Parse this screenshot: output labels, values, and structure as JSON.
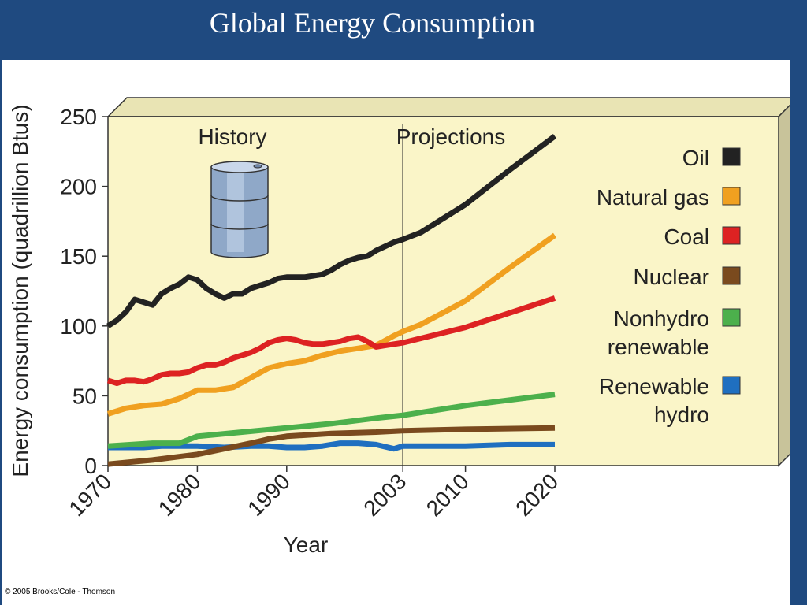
{
  "slide": {
    "title": "Global Energy Consumption"
  },
  "copyright": "© 2005 Brooks/Cole - Thomson",
  "chart_data": {
    "type": "line",
    "ylabel": "Energy consumption (quadrillion Btus)",
    "xlabel": "Year",
    "ylim": [
      0,
      250
    ],
    "yticks": [
      0,
      50,
      100,
      150,
      200,
      250
    ],
    "xticks": [
      1970,
      1980,
      1990,
      2003,
      2010,
      2020
    ],
    "xlim": [
      1970,
      2020
    ],
    "sections": {
      "history": "History",
      "projections": "Projections",
      "divider_year": 2003
    },
    "legend_placement": "right",
    "grid": false,
    "colors": {
      "panel": "#faf5c8",
      "panel_side": "#c8c39a",
      "panel_top": "#e9e4b4"
    },
    "series": [
      {
        "name": "Oil",
        "color": "#222222",
        "x": [
          1970,
          1971,
          1972,
          1973,
          1974,
          1975,
          1976,
          1977,
          1978,
          1979,
          1980,
          1981,
          1982,
          1983,
          1984,
          1985,
          1986,
          1987,
          1988,
          1989,
          1990,
          1991,
          1992,
          1993,
          1994,
          1995,
          1996,
          1997,
          1998,
          1999,
          2000,
          2001,
          2002,
          2003,
          2005,
          2010,
          2015,
          2020
        ],
        "y": [
          100,
          104,
          110,
          119,
          117,
          115,
          123,
          127,
          130,
          135,
          133,
          127,
          123,
          120,
          123,
          123,
          127,
          129,
          131,
          134,
          135,
          135,
          135,
          136,
          137,
          140,
          144,
          147,
          149,
          150,
          154,
          157,
          160,
          162,
          167,
          187,
          212,
          236
        ]
      },
      {
        "name": "Natural gas",
        "color": "#f0a020",
        "x": [
          1970,
          1972,
          1974,
          1976,
          1978,
          1980,
          1982,
          1984,
          1986,
          1988,
          1990,
          1992,
          1994,
          1996,
          1998,
          2000,
          2002,
          2003,
          2005,
          2010,
          2015,
          2020
        ],
        "y": [
          37,
          41,
          43,
          44,
          48,
          54,
          54,
          56,
          63,
          70,
          73,
          75,
          79,
          82,
          84,
          86,
          93,
          96,
          101,
          118,
          142,
          165
        ]
      },
      {
        "name": "Coal",
        "color": "#dd2222",
        "x": [
          1970,
          1971,
          1972,
          1973,
          1974,
          1975,
          1976,
          1977,
          1978,
          1979,
          1980,
          1981,
          1982,
          1983,
          1984,
          1985,
          1986,
          1987,
          1988,
          1989,
          1990,
          1991,
          1992,
          1993,
          1994,
          1995,
          1996,
          1997,
          1998,
          1999,
          2000,
          2001,
          2003,
          2010,
          2020
        ],
        "y": [
          61,
          59,
          61,
          61,
          60,
          62,
          65,
          66,
          66,
          67,
          70,
          72,
          72,
          74,
          77,
          79,
          81,
          84,
          88,
          90,
          91,
          90,
          88,
          87,
          87,
          88,
          89,
          91,
          92,
          89,
          85,
          86,
          88,
          99,
          120
        ]
      },
      {
        "name": "Nuclear",
        "color": "#7a4a1e",
        "x": [
          1970,
          1975,
          1980,
          1983,
          1986,
          1988,
          1990,
          1995,
          2000,
          2003,
          2010,
          2020
        ],
        "y": [
          1,
          4,
          8,
          12,
          16,
          19,
          21,
          23,
          24,
          25,
          26,
          27
        ]
      },
      {
        "name": "Nonhydro renewable",
        "color": "#4cb04c",
        "x": [
          1970,
          1975,
          1978,
          1980,
          1985,
          1990,
          1995,
          2000,
          2003,
          2010,
          2020
        ],
        "y": [
          14,
          16,
          16,
          21,
          24,
          27,
          30,
          34,
          36,
          43,
          51
        ]
      },
      {
        "name": "Renewable hydro",
        "color": "#1f6fc0",
        "x": [
          1970,
          1974,
          1976,
          1978,
          1980,
          1983,
          1986,
          1988,
          1990,
          1992,
          1994,
          1996,
          1998,
          2000,
          2002,
          2003,
          2005,
          2010,
          2015,
          2020
        ],
        "y": [
          13,
          13,
          14,
          14,
          14,
          13,
          14,
          14,
          13,
          13,
          14,
          16,
          16,
          15,
          12,
          14,
          14,
          14,
          15,
          15
        ]
      }
    ],
    "legend": [
      {
        "label": "Oil",
        "color": "#222222"
      },
      {
        "label": "Natural gas",
        "color": "#f0a020"
      },
      {
        "label": "Coal",
        "color": "#dd2222"
      },
      {
        "label": "Nuclear",
        "color": "#7a4a1e"
      },
      {
        "label": "Nonhydro renewable",
        "line1": "Nonhydro",
        "line2": "renewable",
        "color": "#4cb04c"
      },
      {
        "label": "Renewable hydro",
        "line1": "Renewable",
        "line2": "hydro",
        "color": "#1f6fc0"
      }
    ]
  }
}
